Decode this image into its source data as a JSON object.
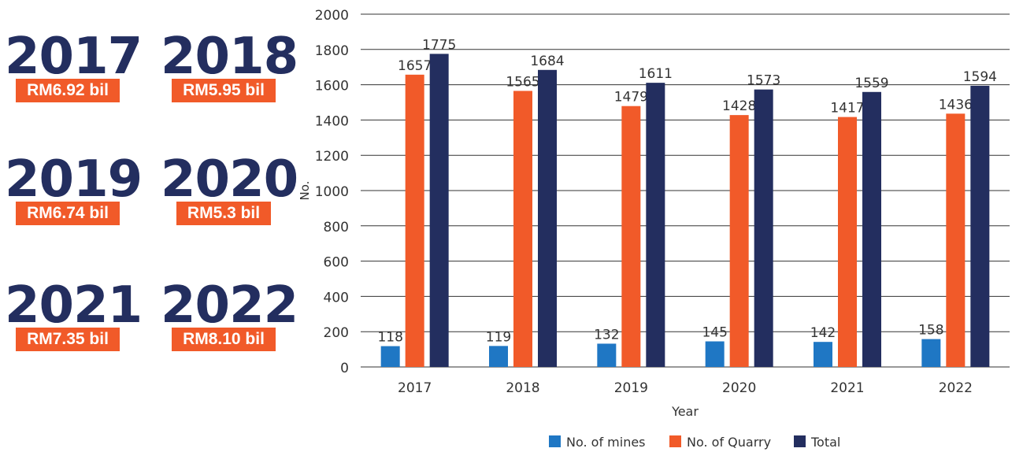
{
  "colors": {
    "navy": "#232E5F",
    "orange": "#F15A29",
    "blue": "#1F77C4",
    "axis_text": "#333333",
    "grid": "#333333"
  },
  "year_cards": [
    {
      "year": "2017",
      "value": "RM6.92 bil"
    },
    {
      "year": "2018",
      "value": "RM5.95 bil"
    },
    {
      "year": "2019",
      "value": "RM6.74 bil"
    },
    {
      "year": "2020",
      "value": "RM5.3 bil"
    },
    {
      "year": "2021",
      "value": "RM7.35 bil"
    },
    {
      "year": "2022",
      "value": "RM8.10 bil"
    }
  ],
  "chart_data": {
    "type": "bar",
    "categories": [
      "2017",
      "2018",
      "2019",
      "2020",
      "2021",
      "2022"
    ],
    "series": [
      {
        "name": "No. of mines",
        "color": "#1F77C4",
        "values": [
          118,
          119,
          132,
          145,
          142,
          158
        ]
      },
      {
        "name": "No. of Quarry",
        "color": "#F15A29",
        "values": [
          1657,
          1565,
          1479,
          1428,
          1417,
          1436
        ]
      },
      {
        "name": "Total",
        "color": "#232E5F",
        "values": [
          1775,
          1684,
          1611,
          1573,
          1559,
          1594
        ]
      }
    ],
    "xlabel": "Year",
    "ylabel": "No.",
    "ylim": [
      0,
      2000
    ],
    "yticks": [
      0,
      200,
      400,
      600,
      800,
      1000,
      1200,
      1400,
      1600,
      1800,
      2000
    ],
    "grid": true,
    "legend_position": "bottom-center"
  }
}
